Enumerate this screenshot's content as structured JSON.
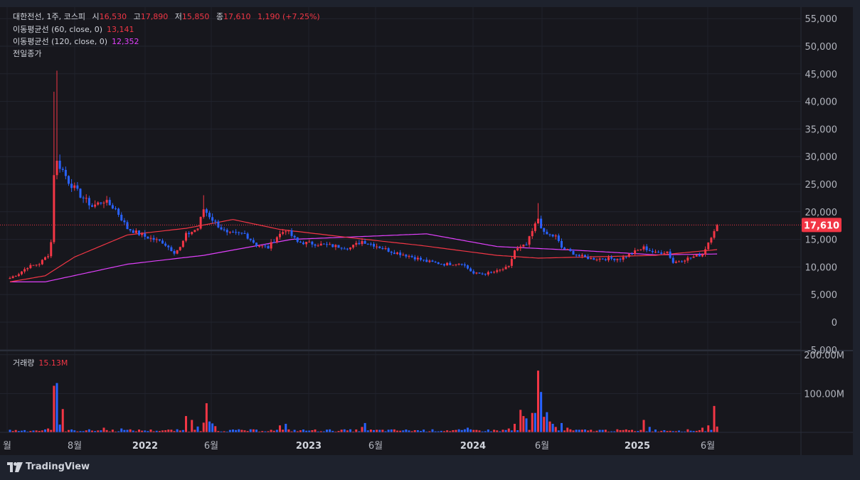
{
  "legend": {
    "symbol": "대한전선, 1주, 코스피",
    "open_label": "시",
    "open": "16,530",
    "high_label": "고",
    "high": "17,890",
    "low_label": "저",
    "low": "15,850",
    "close_label": "종",
    "close": "17,610",
    "change": "1,190 (+7.25%)",
    "ma60_label": "이동평균선 (60, close, 0)",
    "ma60_value": "13,141",
    "ma120_label": "이동평균선 (120, close, 0)",
    "ma120_value": "12,352",
    "prev_close_label": "전일종가"
  },
  "volume": {
    "label": "거래량",
    "value": "15.13M"
  },
  "price_tag": "17,610",
  "brand": "TradingView",
  "colors": {
    "up": "#f23645",
    "down": "#2962ff",
    "ma60": "#f23645",
    "ma120": "#e040fb",
    "bg": "#17171d"
  },
  "chart_data": {
    "type": "candlestick",
    "price_axis": {
      "ticks": [
        55000,
        50000,
        45000,
        40000,
        35000,
        30000,
        25000,
        20000,
        15000,
        10000,
        5000,
        0,
        -5000
      ],
      "tick_labels": [
        "55,000",
        "50,000",
        "45,000",
        "40,000",
        "35,000",
        "30,000",
        "25,000",
        "20,000",
        "15,000",
        "10,000",
        "5,000",
        "0",
        "-5,000"
      ]
    },
    "volume_axis": {
      "ticks": [
        200,
        100
      ],
      "tick_labels": [
        "200.00M",
        "100.00M"
      ],
      "unit": "M"
    },
    "time_axis": {
      "labels": [
        "월",
        "8월",
        "2022",
        "6월",
        "2023",
        "6월",
        "2024",
        "6월",
        "2025",
        "6월"
      ]
    },
    "last_close": 17610,
    "anchors": [
      [
        0,
        8000
      ],
      [
        3,
        8800
      ],
      [
        6,
        10000
      ],
      [
        10,
        10600
      ],
      [
        13,
        12200
      ],
      [
        14,
        14500
      ],
      [
        15,
        27000
      ],
      [
        16,
        29000
      ],
      [
        18,
        27500
      ],
      [
        20,
        25500
      ],
      [
        24,
        23000
      ],
      [
        28,
        21000
      ],
      [
        32,
        22000
      ],
      [
        36,
        20500
      ],
      [
        40,
        17000
      ],
      [
        46,
        15500
      ],
      [
        52,
        14500
      ],
      [
        56,
        12700
      ],
      [
        58,
        13500
      ],
      [
        60,
        15800
      ],
      [
        64,
        17000
      ],
      [
        66,
        20500
      ],
      [
        70,
        18000
      ],
      [
        74,
        16000
      ],
      [
        80,
        16000
      ],
      [
        84,
        14000
      ],
      [
        88,
        13500
      ],
      [
        91,
        15500
      ],
      [
        94,
        16800
      ],
      [
        98,
        14500
      ],
      [
        104,
        14200
      ],
      [
        110,
        13800
      ],
      [
        116,
        13500
      ],
      [
        120,
        14700
      ],
      [
        124,
        14000
      ],
      [
        130,
        12800
      ],
      [
        136,
        12000
      ],
      [
        142,
        11000
      ],
      [
        148,
        10500
      ],
      [
        154,
        10700
      ],
      [
        158,
        8800
      ],
      [
        162,
        8800
      ],
      [
        166,
        9200
      ],
      [
        170,
        10000
      ],
      [
        172,
        13000
      ],
      [
        176,
        14000
      ],
      [
        180,
        18800
      ],
      [
        182,
        16000
      ],
      [
        186,
        15500
      ],
      [
        188,
        13500
      ],
      [
        194,
        12000
      ],
      [
        198,
        11500
      ],
      [
        204,
        11500
      ],
      [
        208,
        11500
      ],
      [
        212,
        12500
      ],
      [
        216,
        13500
      ],
      [
        220,
        12500
      ],
      [
        224,
        12800
      ],
      [
        226,
        10800
      ],
      [
        232,
        11700
      ],
      [
        236,
        12300
      ],
      [
        238,
        14500
      ],
      [
        240,
        16800
      ],
      [
        241,
        17610
      ]
    ],
    "ma60": [
      [
        0,
        7300
      ],
      [
        12,
        8400
      ],
      [
        22,
        11800
      ],
      [
        40,
        15800
      ],
      [
        60,
        17000
      ],
      [
        76,
        18600
      ],
      [
        92,
        16800
      ],
      [
        116,
        15300
      ],
      [
        140,
        13900
      ],
      [
        166,
        12100
      ],
      [
        180,
        11600
      ],
      [
        220,
        12100
      ],
      [
        241,
        13141
      ]
    ],
    "ma120": [
      [
        0,
        7300
      ],
      [
        12,
        7300
      ],
      [
        40,
        10500
      ],
      [
        66,
        12100
      ],
      [
        96,
        15000
      ],
      [
        124,
        15600
      ],
      [
        142,
        16000
      ],
      [
        166,
        13700
      ],
      [
        194,
        13000
      ],
      [
        220,
        12200
      ],
      [
        241,
        12352
      ]
    ],
    "volume_spikes": [
      [
        13,
        10,
        "u"
      ],
      [
        15,
        120,
        "u"
      ],
      [
        16,
        127,
        "d"
      ],
      [
        17,
        20,
        "d"
      ],
      [
        18,
        60,
        "u"
      ],
      [
        32,
        12,
        "u"
      ],
      [
        38,
        10,
        "d"
      ],
      [
        60,
        42,
        "u"
      ],
      [
        62,
        32,
        "u"
      ],
      [
        64,
        15,
        "d"
      ],
      [
        66,
        25,
        "u"
      ],
      [
        67,
        75,
        "u"
      ],
      [
        68,
        28,
        "d"
      ],
      [
        69,
        23,
        "d"
      ],
      [
        70,
        16,
        "u"
      ],
      [
        92,
        18,
        "u"
      ],
      [
        94,
        22,
        "d"
      ],
      [
        120,
        14,
        "u"
      ],
      [
        121,
        24,
        "d"
      ],
      [
        156,
        12,
        "d"
      ],
      [
        170,
        10,
        "u"
      ],
      [
        172,
        22,
        "u"
      ],
      [
        174,
        58,
        "u"
      ],
      [
        175,
        42,
        "u"
      ],
      [
        176,
        36,
        "d"
      ],
      [
        178,
        50,
        "u"
      ],
      [
        179,
        50,
        "d"
      ],
      [
        180,
        159,
        "u"
      ],
      [
        181,
        104,
        "d"
      ],
      [
        182,
        40,
        "u"
      ],
      [
        183,
        52,
        "d"
      ],
      [
        184,
        28,
        "u"
      ],
      [
        185,
        22,
        "d"
      ],
      [
        186,
        14,
        "u"
      ],
      [
        188,
        24,
        "d"
      ],
      [
        190,
        12,
        "u"
      ],
      [
        216,
        32,
        "u"
      ],
      [
        218,
        14,
        "d"
      ],
      [
        236,
        12,
        "u"
      ],
      [
        238,
        18,
        "u"
      ],
      [
        240,
        68,
        "u"
      ],
      [
        241,
        15,
        "u"
      ]
    ]
  }
}
